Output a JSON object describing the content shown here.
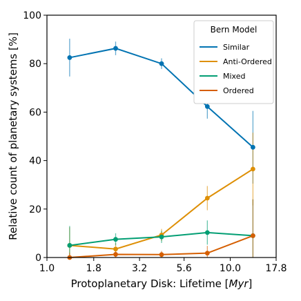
{
  "chart_data": {
    "type": "line",
    "title": "",
    "xlabel_prefix": "Protoplanetary Disk: Lifetime [",
    "xlabel_unit": "Myr",
    "xlabel_suffix": "]",
    "ylabel": "Relative count of planetary systems [%]",
    "x_scale": "log",
    "xlim": [
      1.0,
      17.8
    ],
    "ylim": [
      0,
      100
    ],
    "x_ticks": [
      1.0,
      1.8,
      3.2,
      5.6,
      10.0,
      17.8
    ],
    "x_tick_labels": [
      "1.0",
      "1.8",
      "3.2",
      "5.6",
      "10.0",
      "17.8"
    ],
    "y_ticks": [
      0,
      20,
      40,
      60,
      80,
      100
    ],
    "y_tick_labels": [
      "0",
      "20",
      "40",
      "60",
      "80",
      "100"
    ],
    "grid": false,
    "legend": {
      "title": "Bern Model",
      "placement": "top-right"
    },
    "x": [
      1.33,
      2.37,
      4.22,
      7.5,
      13.3
    ],
    "series": [
      {
        "name": "Similar",
        "color": "#0173b2",
        "values": [
          82.5,
          86.3,
          80.0,
          62.3,
          45.5
        ],
        "err": [
          7.8,
          2.8,
          2.2,
          5.0,
          15.0
        ]
      },
      {
        "name": "Anti-Ordered",
        "color": "#de8f05",
        "values": [
          5.0,
          3.5,
          9.3,
          24.5,
          36.5
        ],
        "err": [
          7.5,
          2.5,
          2.5,
          5.0,
          15.0
        ]
      },
      {
        "name": "Mixed",
        "color": "#029e73",
        "values": [
          5.0,
          7.5,
          8.5,
          10.3,
          9.0
        ],
        "err": [
          8.0,
          2.5,
          2.5,
          5.0,
          15.0
        ]
      },
      {
        "name": "Ordered",
        "color": "#d55e00",
        "values": [
          0.0,
          1.3,
          1.2,
          1.8,
          9.0
        ],
        "err": [
          2.0,
          1.5,
          1.5,
          3.0,
          15.0
        ]
      }
    ]
  }
}
